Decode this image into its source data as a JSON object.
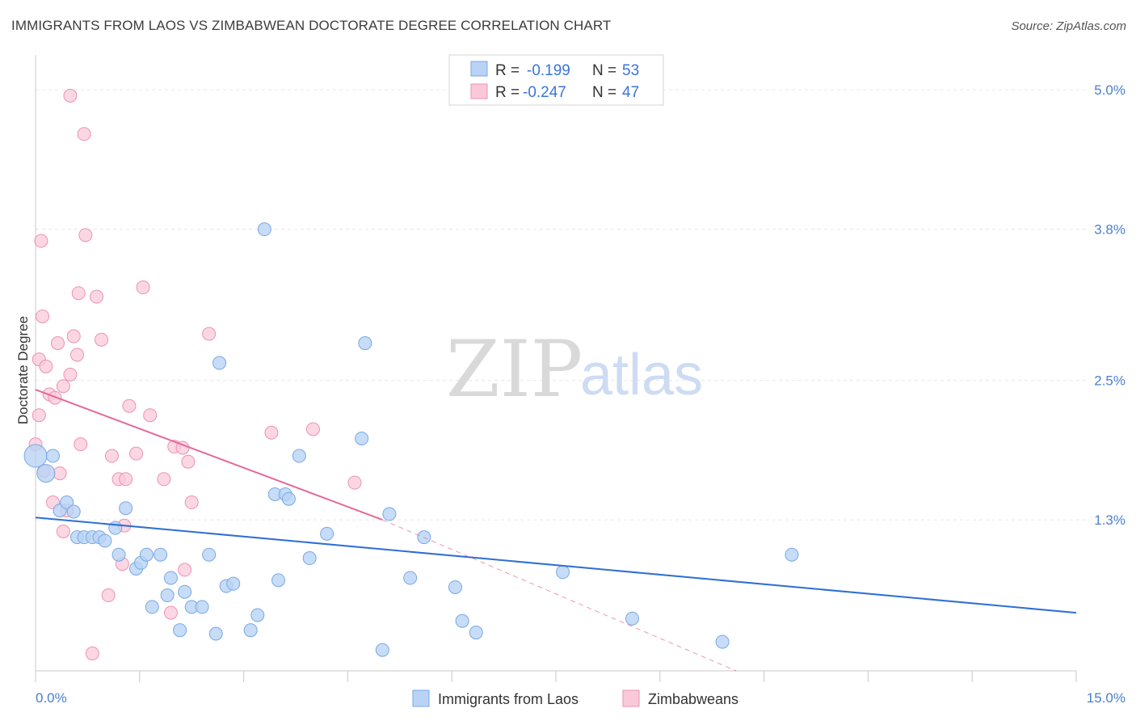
{
  "title": "IMMIGRANTS FROM LAOS VS ZIMBABWEAN DOCTORATE DEGREE CORRELATION CHART",
  "source": "Source: ZipAtlas.com",
  "watermark": {
    "zip": "ZIP",
    "atlas": "atlas"
  },
  "legend_top": [
    {
      "r_label": "R =",
      "r_value": "-0.199",
      "n_label": "N =",
      "n_value": "53"
    },
    {
      "r_label": "R =",
      "r_value": "-0.247",
      "n_label": "N =",
      "n_value": "47"
    }
  ],
  "legend_bottom": [
    "Immigrants from Laos",
    "Zimbabweans"
  ],
  "colors": {
    "laos_fill": "#b8d3f5",
    "laos_stroke": "#7aa8e4",
    "laos_line": "#2e6fd4",
    "zim_fill": "#f9c9d9",
    "zim_stroke": "#ee92b0",
    "zim_line": "#e4689a",
    "tick_text": "#4a7fd0",
    "grid": "#e6e6e6"
  },
  "chart_data": {
    "type": "scatter",
    "xlabel": "",
    "ylabel": "Doctorate Degree",
    "xlim": [
      0,
      15
    ],
    "ylim": [
      0,
      5.3
    ],
    "x_tick_labels": [
      "0.0%",
      "15.0%"
    ],
    "y_ticks": [
      1.3,
      2.5,
      3.8,
      5.0
    ],
    "y_tick_labels": [
      "1.3%",
      "2.5%",
      "3.8%",
      "5.0%"
    ],
    "grid": true,
    "series": [
      {
        "name": "Immigrants from Laos",
        "points": [
          [
            0.0,
            1.85
          ],
          [
            0.15,
            1.7
          ],
          [
            0.25,
            1.85
          ],
          [
            0.35,
            1.38
          ],
          [
            0.45,
            1.45
          ],
          [
            0.55,
            1.37
          ],
          [
            0.6,
            1.15
          ],
          [
            0.7,
            1.15
          ],
          [
            0.82,
            1.15
          ],
          [
            0.92,
            1.15
          ],
          [
            1.0,
            1.12
          ],
          [
            1.15,
            1.23
          ],
          [
            1.2,
            1.0
          ],
          [
            1.3,
            1.4
          ],
          [
            1.45,
            0.88
          ],
          [
            1.52,
            0.93
          ],
          [
            1.6,
            1.0
          ],
          [
            1.68,
            0.55
          ],
          [
            1.8,
            1.0
          ],
          [
            1.9,
            0.65
          ],
          [
            1.95,
            0.8
          ],
          [
            2.08,
            0.35
          ],
          [
            2.15,
            0.68
          ],
          [
            2.25,
            0.55
          ],
          [
            2.4,
            0.55
          ],
          [
            2.5,
            1.0
          ],
          [
            2.6,
            0.32
          ],
          [
            2.65,
            2.65
          ],
          [
            2.75,
            0.73
          ],
          [
            2.85,
            0.75
          ],
          [
            3.1,
            0.35
          ],
          [
            3.2,
            0.48
          ],
          [
            3.3,
            3.8
          ],
          [
            3.45,
            1.52
          ],
          [
            3.5,
            0.78
          ],
          [
            3.6,
            1.52
          ],
          [
            3.65,
            1.48
          ],
          [
            3.8,
            1.85
          ],
          [
            3.95,
            0.97
          ],
          [
            4.2,
            1.18
          ],
          [
            4.7,
            2.0
          ],
          [
            4.75,
            2.82
          ],
          [
            5.0,
            0.18
          ],
          [
            5.1,
            1.35
          ],
          [
            5.4,
            0.8
          ],
          [
            5.6,
            1.15
          ],
          [
            6.05,
            0.72
          ],
          [
            6.15,
            0.43
          ],
          [
            6.35,
            0.33
          ],
          [
            7.6,
            0.85
          ],
          [
            8.6,
            0.45
          ],
          [
            9.9,
            0.25
          ],
          [
            10.9,
            1.0
          ]
        ]
      },
      {
        "name": "Zimbabweans",
        "points": [
          [
            0.0,
            1.95
          ],
          [
            0.05,
            2.2
          ],
          [
            0.05,
            2.68
          ],
          [
            0.1,
            3.05
          ],
          [
            0.15,
            2.62
          ],
          [
            0.2,
            2.38
          ],
          [
            0.25,
            1.45
          ],
          [
            0.28,
            2.35
          ],
          [
            0.32,
            2.82
          ],
          [
            0.35,
            1.7
          ],
          [
            0.4,
            1.2
          ],
          [
            0.4,
            2.45
          ],
          [
            0.45,
            1.38
          ],
          [
            0.5,
            4.95
          ],
          [
            0.5,
            2.55
          ],
          [
            0.55,
            2.88
          ],
          [
            0.6,
            2.72
          ],
          [
            0.62,
            3.25
          ],
          [
            0.65,
            1.95
          ],
          [
            0.7,
            4.62
          ],
          [
            0.72,
            3.75
          ],
          [
            0.82,
            0.15
          ],
          [
            0.88,
            3.22
          ],
          [
            0.95,
            2.85
          ],
          [
            1.05,
            0.65
          ],
          [
            1.1,
            1.85
          ],
          [
            1.2,
            1.65
          ],
          [
            1.25,
            0.92
          ],
          [
            1.28,
            1.25
          ],
          [
            1.3,
            1.65
          ],
          [
            1.35,
            2.28
          ],
          [
            1.45,
            1.87
          ],
          [
            1.55,
            3.3
          ],
          [
            1.65,
            2.2
          ],
          [
            1.85,
            1.65
          ],
          [
            1.95,
            0.5
          ],
          [
            2.0,
            1.93
          ],
          [
            2.12,
            1.92
          ],
          [
            2.15,
            0.87
          ],
          [
            2.2,
            1.8
          ],
          [
            2.25,
            1.45
          ],
          [
            2.5,
            2.9
          ],
          [
            3.4,
            2.05
          ],
          [
            4.0,
            2.08
          ],
          [
            4.6,
            1.62
          ],
          [
            0.08,
            3.7
          ],
          [
            0.12,
            1.72
          ]
        ]
      }
    ],
    "trend_lines": [
      {
        "series": "Immigrants from Laos",
        "x": [
          0.0,
          15.0
        ],
        "y": [
          1.32,
          0.5
        ]
      },
      {
        "series": "Zimbabweans",
        "x": [
          0.0,
          5.0
        ],
        "y": [
          2.42,
          1.3
        ],
        "dashed_extension": {
          "x": [
            5.0,
            10.1
          ],
          "y": [
            1.3,
            0.0
          ]
        }
      }
    ]
  }
}
